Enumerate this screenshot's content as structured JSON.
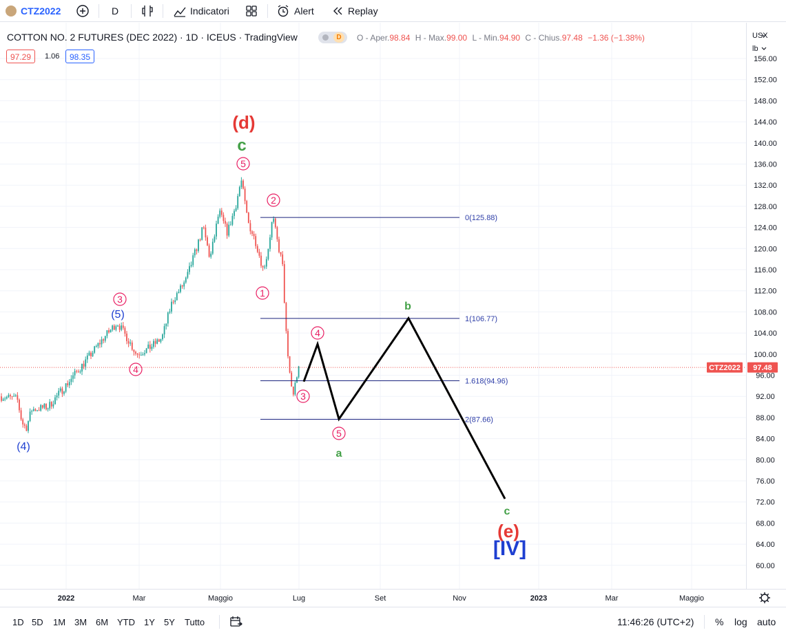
{
  "toolbar": {
    "symbol": "CTZ2022",
    "interval": "D",
    "indicators_label": "Indicatori",
    "alert_label": "Alert",
    "replay_label": "Replay"
  },
  "legend": {
    "title": "COTTON NO. 2 FUTURES (DEC 2022) · 1D · ICEUS · TradingView",
    "badge": "D",
    "o_label": "O - Aper.",
    "o_value": "98.84",
    "h_label": "H - Max.",
    "h_value": "99.00",
    "l_label": "L - Min.",
    "l_value": "94.90",
    "c_label": "C - Chius.",
    "c_value": "97.48",
    "change": "−1.36 (−1.38%)",
    "bid": "97.29",
    "spread": "1.06",
    "ask": "98.35"
  },
  "price_axis": {
    "currency": "USX",
    "unit": "lb",
    "ticks": [
      "156.00",
      "152.00",
      "148.00",
      "144.00",
      "140.00",
      "136.00",
      "132.00",
      "128.00",
      "124.00",
      "120.00",
      "116.00",
      "112.00",
      "108.00",
      "104.00",
      "100.00",
      "96.00",
      "92.00",
      "88.00",
      "84.00",
      "80.00",
      "76.00",
      "72.00",
      "68.00",
      "64.00",
      "60.00"
    ],
    "last_symbol": "CTZ2022",
    "last_price": "97.48"
  },
  "time_axis": {
    "labels": [
      "2022",
      "Mar",
      "Maggio",
      "Lug",
      "Set",
      "Nov",
      "2023",
      "Mar",
      "Maggio"
    ]
  },
  "fib_levels": [
    {
      "label": "0(125.88)",
      "price": 125.88
    },
    {
      "label": "1(106.77)",
      "price": 106.77
    },
    {
      "label": "1.618(94.96)",
      "price": 94.96
    },
    {
      "label": "2(87.66)",
      "price": 87.66
    }
  ],
  "wave_labels": {
    "d": "(d)",
    "c_top": "c",
    "w5_top": "5",
    "w2": "2",
    "w1": "1",
    "w3_low": "3",
    "w4_down": "4",
    "w5_down": "5",
    "a": "a",
    "b": "b",
    "c_end": "c",
    "e": "(e)",
    "iv": "[IV]",
    "w3_left": "3",
    "w5_blue": "(5)",
    "w4_left": "4",
    "w4_blue": "(4)"
  },
  "colors": {
    "up": "#26a69a",
    "down": "#ef5350",
    "wave_pink": "#e91e63",
    "wave_green": "#43a047",
    "wave_blue": "#1e3fd1",
    "wave_red": "#e53935",
    "fib_line": "#1a237e"
  },
  "bottombar": {
    "ranges": [
      "1D",
      "5D",
      "1M",
      "3M",
      "6M",
      "YTD",
      "1Y",
      "5Y",
      "Tutto"
    ],
    "clock": "11:46:26 (UTC+2)",
    "pct": "%",
    "log": "log",
    "auto": "auto"
  }
}
